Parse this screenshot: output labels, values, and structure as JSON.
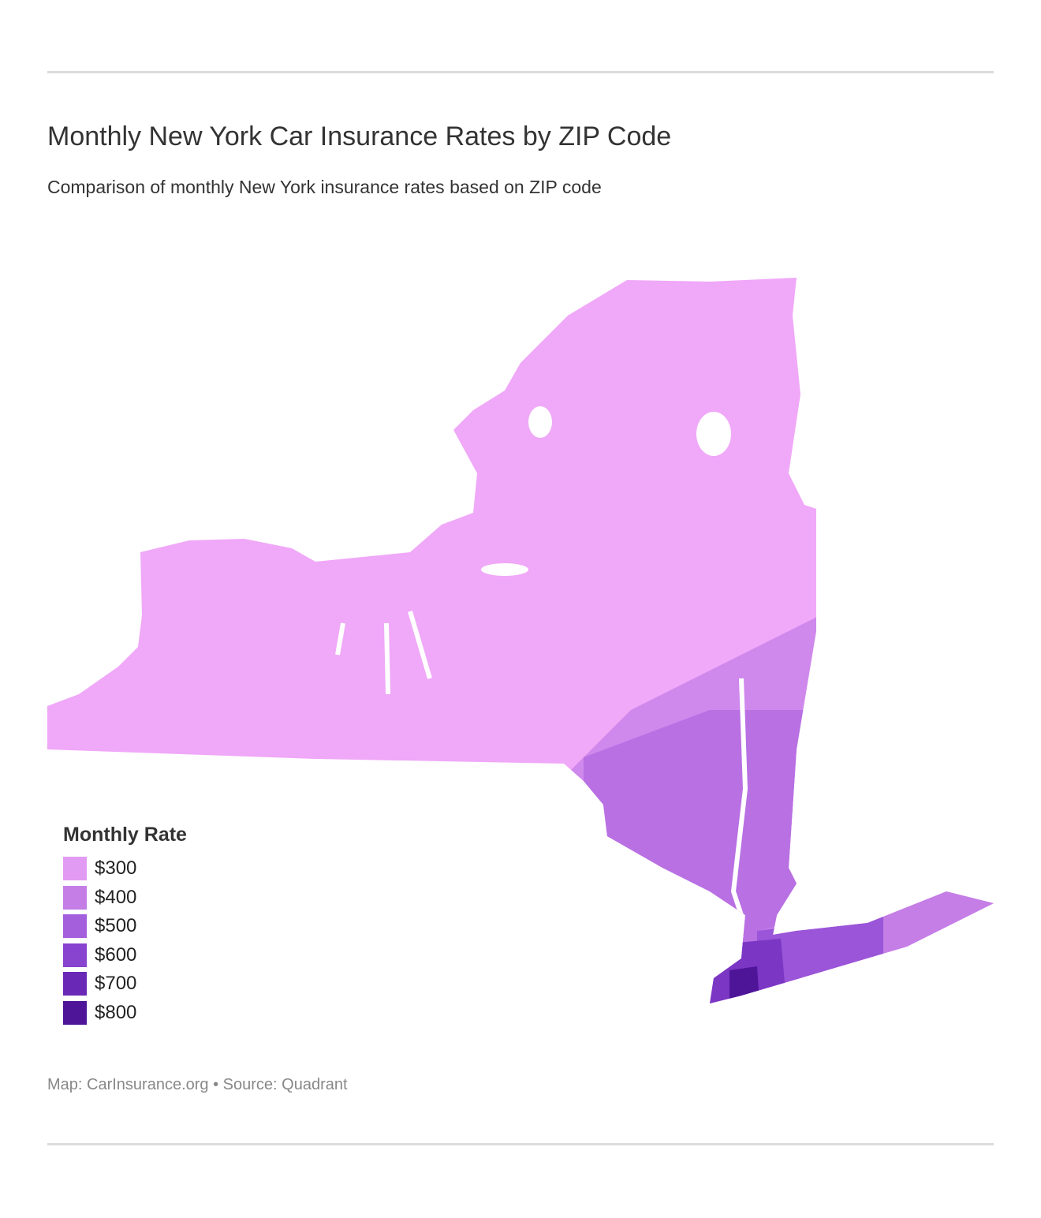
{
  "header": {
    "title": "Monthly New York Car Insurance Rates by ZIP Code",
    "subtitle": "Comparison of monthly New York insurance rates based on ZIP code"
  },
  "legend": {
    "title": "Monthly Rate",
    "items": [
      {
        "value": 300,
        "label": "$300",
        "color": "#e29bf2"
      },
      {
        "value": 400,
        "label": "$400",
        "color": "#c47ee6"
      },
      {
        "value": 500,
        "label": "$500",
        "color": "#a45fdd"
      },
      {
        "value": 600,
        "label": "$600",
        "color": "#8843cf"
      },
      {
        "value": 700,
        "label": "$700",
        "color": "#6a28b6"
      },
      {
        "value": 800,
        "label": "$800",
        "color": "#4e1599"
      }
    ]
  },
  "footer": {
    "source": "Map: CarInsurance.org • Source: Quadrant"
  }
}
